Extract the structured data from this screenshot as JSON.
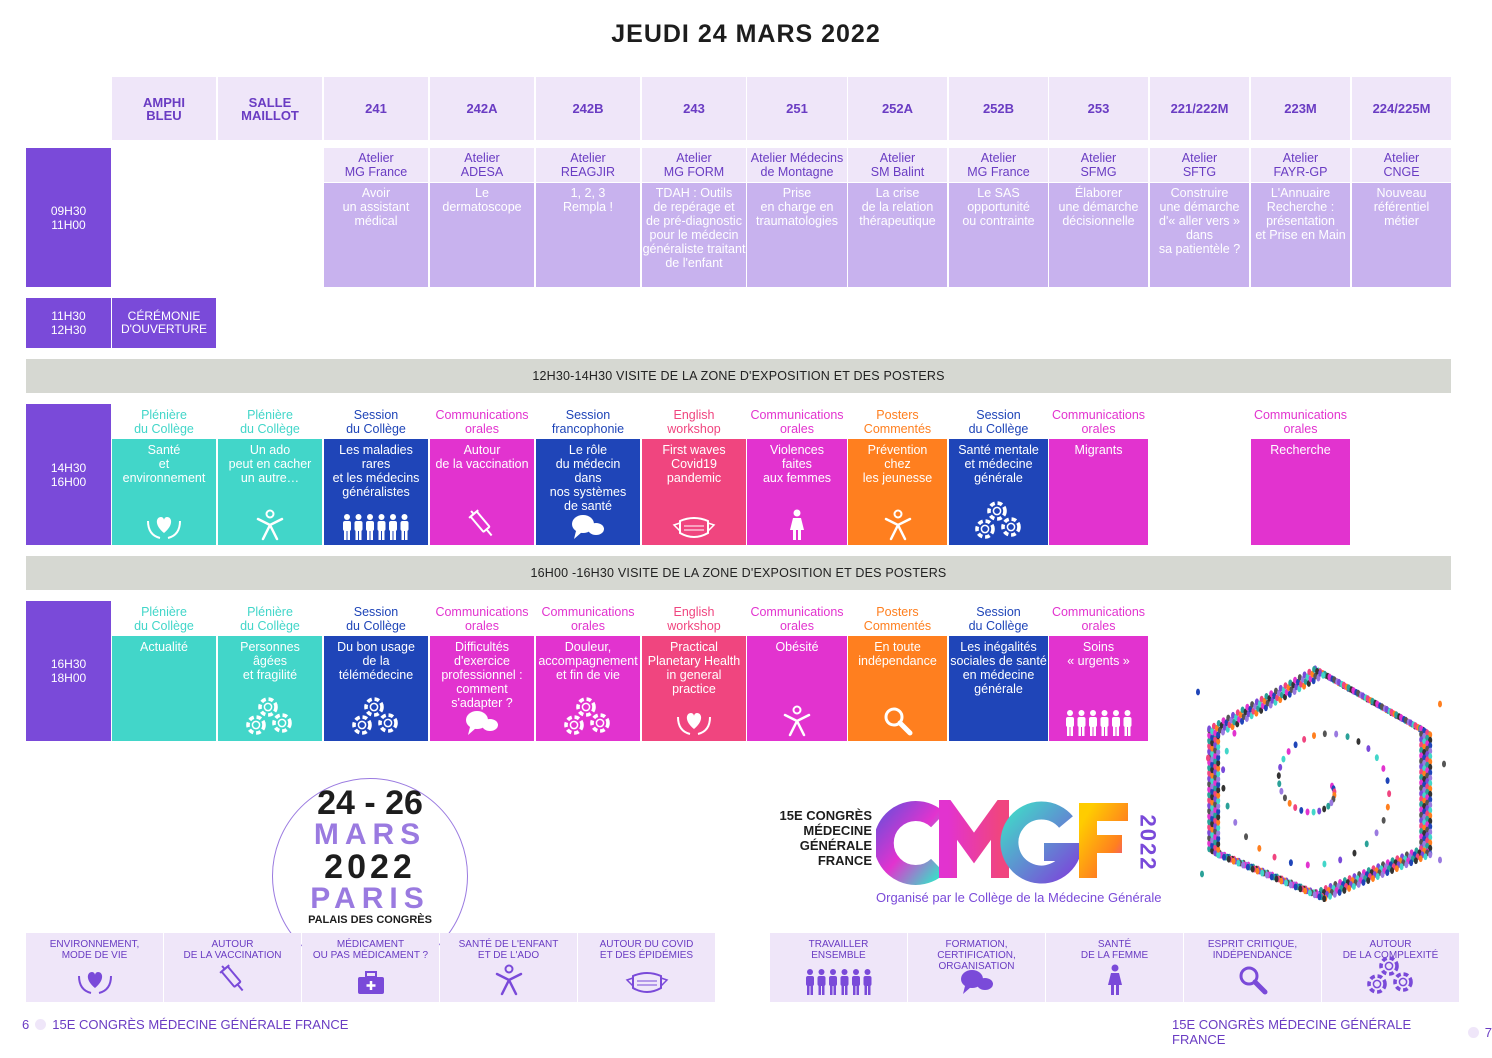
{
  "title": "JEUDI 24 MARS 2022",
  "colors": {
    "purple": "#7a4ad9",
    "lavender": "#efe6f9",
    "lilac": "#c8b2ee",
    "teal": "#42d6c9",
    "blue": "#1f45b8",
    "magenta": "#e233cf",
    "pink": "#f0457f",
    "orange": "#ff7f1f",
    "grey": "#d6d8d2"
  },
  "rooms": [
    "AMPHI\nBLEU",
    "SALLE\nMAILLOT",
    "241",
    "242A",
    "242B",
    "243",
    "251",
    "252A",
    "252B",
    "253",
    "221/222M",
    "223M",
    "224/225M"
  ],
  "times": {
    "t1": "09H30\n11H00",
    "t2": "11H30\n12H30",
    "t3": "14H30\n16H00",
    "t4": "16H30\n18H00"
  },
  "ceremony": "CÉRÉMONIE\nD'OUVERTURE",
  "workshops": [
    {
      "head": "Atelier\nMG France",
      "body": "Avoir\nun assistant\nmédical"
    },
    {
      "head": "Atelier\nADESA",
      "body": "Le\ndermatoscope"
    },
    {
      "head": "Atelier\nREAGJIR",
      "body": "1, 2, 3\nRempla !"
    },
    {
      "head": "Atelier\nMG FORM",
      "body": "TDAH : Outils\nde repérage et\nde pré-diagnostic\npour le médecin\ngénéraliste traitant\nde l'enfant"
    },
    {
      "head": "Atelier Médecins\nde Montagne",
      "body": "Prise\nen charge en\ntraumatologies"
    },
    {
      "head": "Atelier\nSM Balint",
      "body": "La crise\nde la relation\nthérapeutique"
    },
    {
      "head": "Atelier\nMG France",
      "body": "Le SAS\nopportunité\nou contrainte"
    },
    {
      "head": "Atelier\nSFMG",
      "body": "Élaborer\nune démarche\ndécisionnelle"
    },
    {
      "head": "Atelier\nSFTG",
      "body": "Construire\nune démarche\nd'« aller vers »\ndans\nsa patientèle ?"
    },
    {
      "head": "Atelier\nFAYR-GP",
      "body": "L'Annuaire\nRecherche :\nprésentation\net Prise en Main"
    },
    {
      "head": "Atelier\nCNGE",
      "body": "Nouveau\nréférentiel\nmétier"
    }
  ],
  "break1": "12H30-14H30 VISITE DE LA ZONE D'EXPOSITION ET DES POSTERS",
  "break2": "16H00 -16H30 VISITE DE LA ZONE D'EXPOSITION ET DES POSTERS",
  "session1": [
    {
      "type": "Plénière\ndu Collège",
      "body": "Santé\net\nenvironnement",
      "color": "#42d6c9",
      "icon": "heart-hands-icon"
    },
    {
      "type": "Plénière\ndu Collège",
      "body": "Un ado\npeut en cacher\nun autre…",
      "color": "#42d6c9",
      "icon": "person-icon"
    },
    {
      "type": "Session\ndu Collège",
      "body": "Les maladies\nrares\net les médecins\ngénéralistes",
      "color": "#1f45b8",
      "icon": "people-icon"
    },
    {
      "type": "Communications\norales",
      "body": "Autour\nde la vaccination",
      "color": "#e233cf",
      "icon": "syringe-icon"
    },
    {
      "type": "Session\nfrancophonie",
      "body": "Le rôle\ndu médecin\ndans\nnos systèmes\nde santé",
      "color": "#1f45b8",
      "icon": "speech-icon"
    },
    {
      "type": "English\nworkshop",
      "body": "First waves\nCovid19\npandemic",
      "color": "#f0457f",
      "icon": "mask-icon"
    },
    {
      "type": "Communications\norales",
      "body": "Violences\nfaites\naux femmes",
      "color": "#e233cf",
      "icon": "woman-icon"
    },
    {
      "type": "Posters\nCommentés",
      "body": "Prévention\nchez\nles jeunesse",
      "color": "#ff7f1f",
      "icon": "person-icon"
    },
    {
      "type": "Session\ndu Collège",
      "body": "Santé mentale\net médecine\ngénérale",
      "color": "#1f45b8",
      "icon": "gears-icon"
    },
    {
      "type": "Communications\norales",
      "body": "Migrants",
      "color": "#e233cf",
      "icon": ""
    },
    {
      "type": "Communications\norales",
      "body": "Recherche",
      "color": "#e233cf",
      "icon": ""
    }
  ],
  "session2": [
    {
      "type": "Plénière\ndu Collège",
      "body": "Actualité",
      "color": "#42d6c9",
      "icon": ""
    },
    {
      "type": "Plénière\ndu Collège",
      "body": "Personnes\nâgées\net fragilité",
      "color": "#42d6c9",
      "icon": "gears-icon"
    },
    {
      "type": "Session\ndu Collège",
      "body": "Du bon usage\nde la\ntélémédecine",
      "color": "#1f45b8",
      "icon": "gears-icon"
    },
    {
      "type": "Communications\norales",
      "body": "Difficultés\nd'exercice\nprofessionnel :\ncomment\ns'adapter ?",
      "color": "#e233cf",
      "icon": "speech-icon"
    },
    {
      "type": "Communications\norales",
      "body": "Douleur,\naccompagnement\net fin de vie",
      "color": "#e233cf",
      "icon": "gears-icon"
    },
    {
      "type": "English\nworkshop",
      "body": "Practical\nPlanetary Health\nin general\npractice",
      "color": "#f0457f",
      "icon": "heart-hands-icon"
    },
    {
      "type": "Communications\norales",
      "body": "Obésité",
      "color": "#e233cf",
      "icon": "person-icon"
    },
    {
      "type": "Posters\nCommentés",
      "body": "En toute\nindépendance",
      "color": "#ff7f1f",
      "icon": "magnifier-icon"
    },
    {
      "type": "Session\ndu Collège",
      "body": "Les inégalités\nsociales de santé\nen médecine\ngénérale",
      "color": "#1f45b8",
      "icon": ""
    },
    {
      "type": "Communications\norales",
      "body": "Soins\n« urgents »",
      "color": "#e233cf",
      "icon": "people-icon"
    }
  ],
  "dates": {
    "days": "24 - 26",
    "month": "MARS",
    "year": "2022",
    "city": "PARIS",
    "venue": "PALAIS DES CONGRÈS"
  },
  "congress": {
    "line1": "15E CONGRÈS",
    "line2": "MÉDECINE",
    "line3": "GÉNÉRALE",
    "line4": "FRANCE",
    "logo": "CMGF",
    "year": "2022",
    "organiser": "Organisé par le Collège de la Médecine Générale"
  },
  "legend_left": [
    {
      "label": "ENVIRONNEMENT,\nMODE DE VIE",
      "icon": "heart-hands-icon"
    },
    {
      "label": "AUTOUR\nDE LA VACCINATION",
      "icon": "syringe-icon"
    },
    {
      "label": "MÉDICAMENT\nOU PAS MÉDICAMENT ?",
      "icon": "medkit-icon"
    },
    {
      "label": "SANTÉ DE L'ENFANT\nET DE L'ADO",
      "icon": "person-icon"
    },
    {
      "label": "AUTOUR DU COVID\nET DES ÉPIDÉMIES",
      "icon": "mask-icon"
    }
  ],
  "legend_right": [
    {
      "label": "TRAVAILLER\nENSEMBLE",
      "icon": "people-icon"
    },
    {
      "label": "FORMATION,\nCERTIFICATION,\nORGANISATION",
      "icon": "speech-icon"
    },
    {
      "label": "SANTÉ\nDE LA FEMME",
      "icon": "woman-icon"
    },
    {
      "label": "ESPRIT CRITIQUE,\nINDÉPENDANCE",
      "icon": "magnifier-icon"
    },
    {
      "label": "AUTOUR\nDE LA COMPLEXITÉ",
      "icon": "gears-icon"
    }
  ],
  "footer": {
    "left_page": "6",
    "right_page": "7",
    "text": "15E CONGRÈS MÉDECINE GÉNÉRALE FRANCE"
  }
}
